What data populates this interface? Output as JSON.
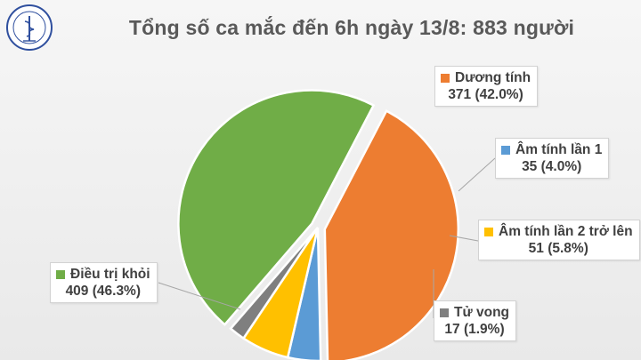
{
  "logo": {
    "icon": "ministry-of-health-logo",
    "text_top": "BỘ Y TẾ",
    "text_bottom": "MINISTRY OF HEALTH"
  },
  "title": "Tổng số ca mắc đến 6h ngày 13/8: 883 người",
  "chart_data": {
    "type": "pie",
    "title": "Tổng số ca mắc đến 6h ngày 13/8: 883 người",
    "total": 883,
    "slices": [
      {
        "name": "Dương tính",
        "value": 371,
        "percent": "42.0%",
        "color": "#ed7d31",
        "value_label": "371 (42.0%)"
      },
      {
        "name": "Âm tính lần 1",
        "value": 35,
        "percent": "4.0%",
        "color": "#5b9bd5",
        "value_label": "35 (4.0%)"
      },
      {
        "name": "Âm tính lần 2 trở lên",
        "value": 51,
        "percent": "5.8%",
        "color": "#ffc000",
        "value_label": "51 (5.8%)"
      },
      {
        "name": "Tử vong",
        "value": 17,
        "percent": "1.9%",
        "color": "#7f7f7f",
        "value_label": "17 (1.9%)"
      },
      {
        "name": "Điều trị khỏi",
        "value": 409,
        "percent": "46.3%",
        "color": "#70ad47",
        "value_label": "409 (46.3%)"
      }
    ]
  }
}
